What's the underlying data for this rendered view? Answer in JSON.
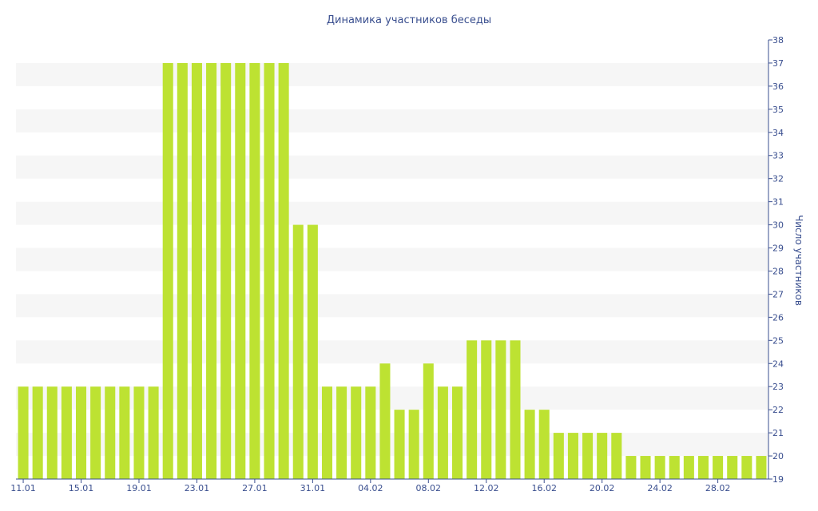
{
  "chart_data": {
    "type": "bar",
    "title": "Динамика участников беседы",
    "xlabel": "",
    "ylabel": "Число участников",
    "y_axis_position": "right",
    "ylim": [
      19,
      38
    ],
    "yticks": [
      19,
      20,
      21,
      22,
      23,
      24,
      25,
      26,
      27,
      28,
      29,
      30,
      31,
      32,
      33,
      34,
      35,
      36,
      37,
      38
    ],
    "xtick_labels": [
      "11.01",
      "15.01",
      "19.01",
      "23.01",
      "27.01",
      "31.01",
      "04.02",
      "08.02",
      "12.02",
      "16.02",
      "20.02",
      "24.02",
      "28.02"
    ],
    "xtick_every": 4,
    "grid": "alternating horizontal bands",
    "legend": "none",
    "bar_color": "#bde232",
    "band_color": "#f6f6f6",
    "text_color": "#3a4f8f",
    "categories": [
      "11.01",
      "12.01",
      "13.01",
      "14.01",
      "15.01",
      "16.01",
      "17.01",
      "18.01",
      "19.01",
      "20.01",
      "21.01",
      "22.01",
      "23.01",
      "24.01",
      "25.01",
      "26.01",
      "27.01",
      "28.01",
      "29.01",
      "30.01",
      "31.01",
      "01.02",
      "02.02",
      "03.02",
      "04.02",
      "05.02",
      "06.02",
      "07.02",
      "08.02",
      "09.02",
      "10.02",
      "11.02",
      "12.02",
      "13.02",
      "14.02",
      "15.02",
      "16.02",
      "17.02",
      "18.02",
      "19.02",
      "20.02",
      "21.02",
      "22.02",
      "23.02",
      "24.02",
      "25.02",
      "26.02",
      "27.02",
      "28.02",
      "29.02",
      "01.03",
      "02.03"
    ],
    "values": [
      23,
      23,
      23,
      23,
      23,
      23,
      23,
      23,
      23,
      23,
      37,
      37,
      37,
      37,
      37,
      37,
      37,
      37,
      37,
      30,
      30,
      23,
      23,
      23,
      23,
      24,
      22,
      22,
      24,
      23,
      23,
      25,
      25,
      25,
      25,
      22,
      22,
      21,
      21,
      21,
      21,
      21,
      20,
      20,
      20,
      20,
      20,
      20,
      20,
      20,
      20,
      20
    ]
  }
}
